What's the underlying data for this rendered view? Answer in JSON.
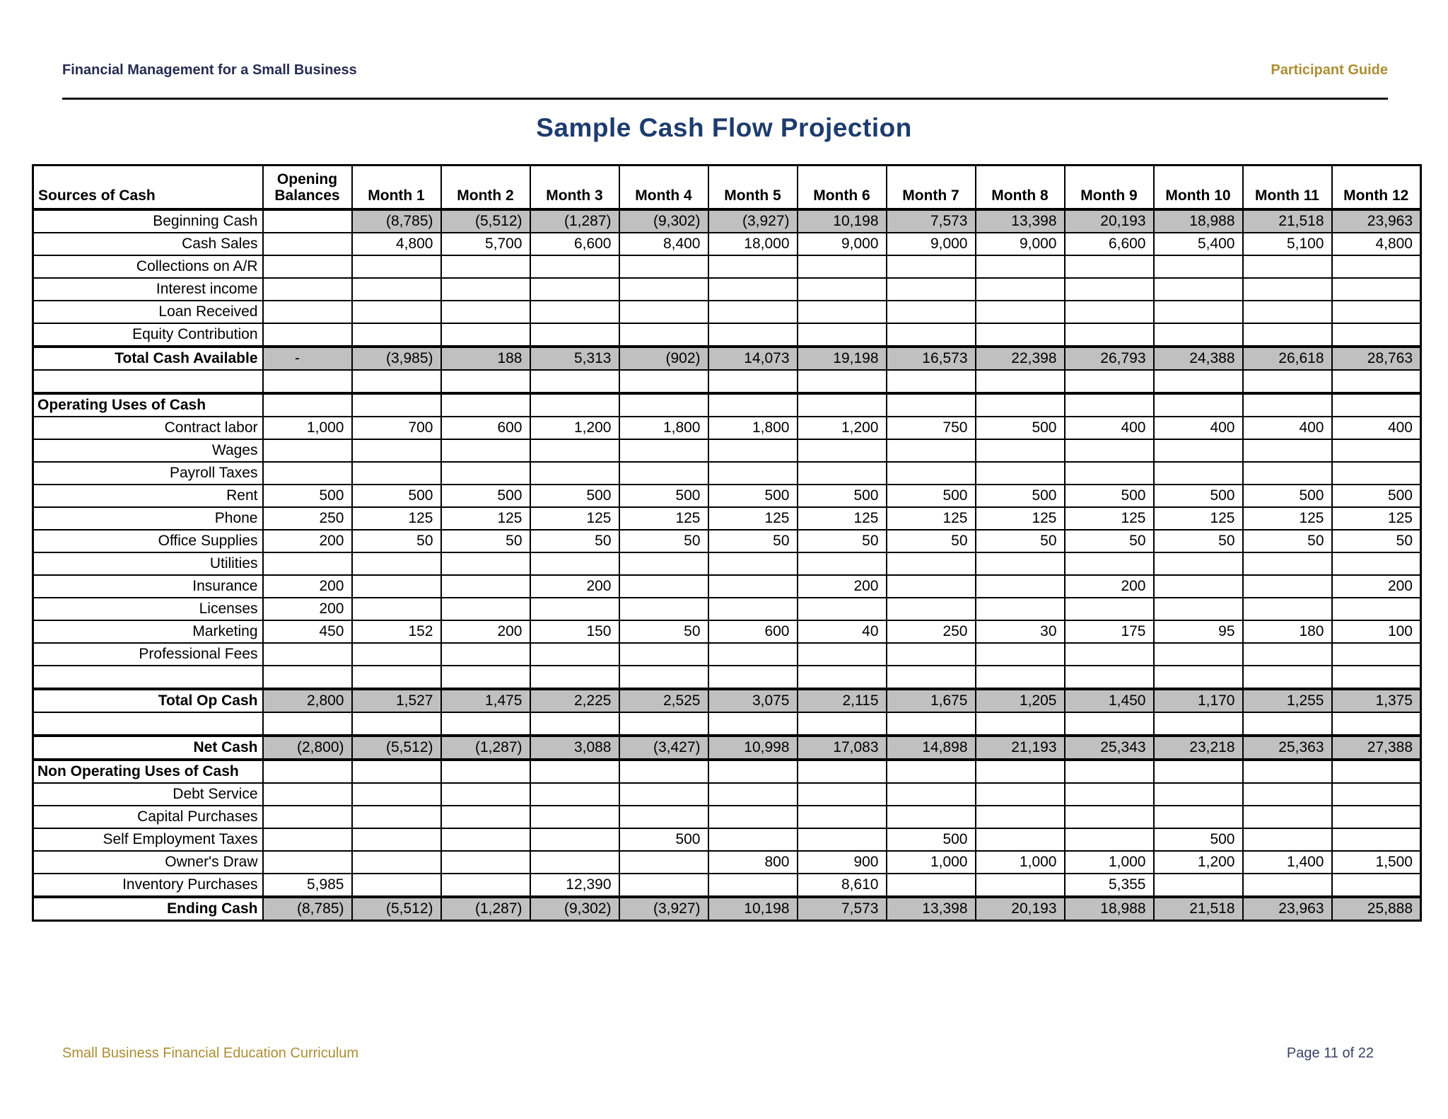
{
  "page": {
    "header_left": "Financial Management for a Small Business",
    "header_right": "Participant Guide",
    "title": "Sample Cash Flow Projection",
    "footer_left": "Small Business Financial Education Curriculum",
    "footer_right": "Page 11 of 22"
  },
  "colors": {
    "header_navy": "#272c52",
    "title_navy": "#1d3c6e",
    "gold": "#ad8d33",
    "footer_navy": "#3c4166",
    "shaded_cell": "#c0c0c0",
    "border": "#000000"
  },
  "table": {
    "corner_label": "Sources of Cash",
    "columns": [
      "Opening Balances",
      "Month 1",
      "Month 2",
      "Month 3",
      "Month 4",
      "Month 5",
      "Month 6",
      "Month 7",
      "Month 8",
      "Month 9",
      "Month 10",
      "Month 11",
      "Month 12"
    ],
    "rows": [
      {
        "label": "Beginning Cash",
        "style": "item",
        "shade": "months",
        "values": [
          "",
          "(8,785)",
          "(5,512)",
          "(1,287)",
          "(9,302)",
          "(3,927)",
          "10,198",
          "7,573",
          "13,398",
          "20,193",
          "18,988",
          "21,518",
          "23,963"
        ]
      },
      {
        "label": "Cash Sales",
        "style": "item",
        "shade": "none",
        "values": [
          "",
          "4,800",
          "5,700",
          "6,600",
          "8,400",
          "18,000",
          "9,000",
          "9,000",
          "9,000",
          "6,600",
          "5,400",
          "5,100",
          "4,800"
        ]
      },
      {
        "label": "Collections on A/R",
        "style": "item",
        "shade": "none",
        "values": []
      },
      {
        "label": "Interest income",
        "style": "item",
        "shade": "none",
        "values": []
      },
      {
        "label": "Loan Received",
        "style": "item",
        "shade": "none",
        "values": []
      },
      {
        "label": "Equity Contribution",
        "style": "item",
        "shade": "none",
        "values": []
      },
      {
        "label": "Total Cash Available",
        "style": "total",
        "shade": "all",
        "thick_top": true,
        "values": [
          "-",
          "(3,985)",
          "188",
          "5,313",
          "(902)",
          "14,073",
          "19,198",
          "16,573",
          "22,398",
          "26,793",
          "24,388",
          "26,618",
          "28,763"
        ]
      },
      {
        "label": "",
        "style": "blank",
        "shade": "none",
        "values": []
      },
      {
        "label": "Operating Uses of Cash",
        "style": "section",
        "shade": "none",
        "thick_top": true,
        "values": []
      },
      {
        "label": "Contract labor",
        "style": "item",
        "shade": "none",
        "values": [
          "1,000",
          "700",
          "600",
          "1,200",
          "1,800",
          "1,800",
          "1,200",
          "750",
          "500",
          "400",
          "400",
          "400",
          "400"
        ]
      },
      {
        "label": "Wages",
        "style": "item",
        "shade": "none",
        "values": []
      },
      {
        "label": "Payroll Taxes",
        "style": "item",
        "shade": "none",
        "values": []
      },
      {
        "label": "Rent",
        "style": "item",
        "shade": "none",
        "values": [
          "500",
          "500",
          "500",
          "500",
          "500",
          "500",
          "500",
          "500",
          "500",
          "500",
          "500",
          "500",
          "500"
        ]
      },
      {
        "label": "Phone",
        "style": "item",
        "shade": "none",
        "values": [
          "250",
          "125",
          "125",
          "125",
          "125",
          "125",
          "125",
          "125",
          "125",
          "125",
          "125",
          "125",
          "125"
        ]
      },
      {
        "label": "Office Supplies",
        "style": "item",
        "shade": "none",
        "values": [
          "200",
          "50",
          "50",
          "50",
          "50",
          "50",
          "50",
          "50",
          "50",
          "50",
          "50",
          "50",
          "50"
        ]
      },
      {
        "label": "Utilities",
        "style": "item",
        "shade": "none",
        "values": []
      },
      {
        "label": "Insurance",
        "style": "item",
        "shade": "none",
        "values": [
          "200",
          "",
          "",
          "200",
          "",
          "",
          "200",
          "",
          "",
          "200",
          "",
          "",
          "200"
        ]
      },
      {
        "label": "Licenses",
        "style": "item",
        "shade": "none",
        "values": [
          "200",
          "",
          "",
          "",
          "",
          "",
          "",
          "",
          "",
          "",
          "",
          "",
          ""
        ]
      },
      {
        "label": "Marketing",
        "style": "item",
        "shade": "none",
        "values": [
          "450",
          "152",
          "200",
          "150",
          "50",
          "600",
          "40",
          "250",
          "30",
          "175",
          "95",
          "180",
          "100"
        ]
      },
      {
        "label": "Professional Fees",
        "style": "item",
        "shade": "none",
        "values": []
      },
      {
        "label": "",
        "style": "blank",
        "shade": "none",
        "values": []
      },
      {
        "label": "Total Op Cash",
        "style": "total",
        "shade": "all",
        "thick_top": true,
        "values": [
          "2,800",
          "1,527",
          "1,475",
          "2,225",
          "2,525",
          "3,075",
          "2,115",
          "1,675",
          "1,205",
          "1,450",
          "1,170",
          "1,255",
          "1,375"
        ]
      },
      {
        "label": "",
        "style": "blank",
        "shade": "none",
        "values": []
      },
      {
        "label": "Net Cash",
        "style": "total",
        "shade": "all",
        "thick_top": true,
        "values": [
          "(2,800)",
          "(5,512)",
          "(1,287)",
          "3,088",
          "(3,427)",
          "10,998",
          "17,083",
          "14,898",
          "21,193",
          "25,343",
          "23,218",
          "25,363",
          "27,388"
        ]
      },
      {
        "label": "Non Operating Uses of Cash",
        "style": "section",
        "shade": "none",
        "thick_top": true,
        "values": []
      },
      {
        "label": "Debt Service",
        "style": "item",
        "shade": "none",
        "values": []
      },
      {
        "label": "Capital Purchases",
        "style": "item",
        "shade": "none",
        "values": []
      },
      {
        "label": "Self Employment Taxes",
        "style": "item",
        "shade": "none",
        "values": [
          "",
          "",
          "",
          "",
          "500",
          "",
          "",
          "500",
          "",
          "",
          "500",
          "",
          ""
        ]
      },
      {
        "label": "Owner's Draw",
        "style": "item",
        "shade": "none",
        "values": [
          "",
          "",
          "",
          "",
          "",
          "800",
          "900",
          "1,000",
          "1,000",
          "1,000",
          "1,200",
          "1,400",
          "1,500"
        ]
      },
      {
        "label": "Inventory Purchases",
        "style": "item",
        "shade": "none",
        "values": [
          "5,985",
          "",
          "",
          "12,390",
          "",
          "",
          "8,610",
          "",
          "",
          "5,355",
          "",
          "",
          ""
        ]
      },
      {
        "label": "Ending Cash",
        "style": "total",
        "shade": "all",
        "thick_top": true,
        "values": [
          "(8,785)",
          "(5,512)",
          "(1,287)",
          "(9,302)",
          "(3,927)",
          "10,198",
          "7,573",
          "13,398",
          "20,193",
          "18,988",
          "21,518",
          "23,963",
          "25,888"
        ]
      }
    ]
  }
}
